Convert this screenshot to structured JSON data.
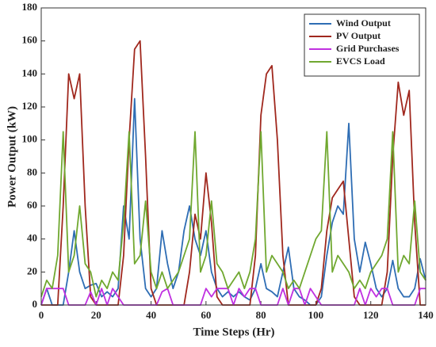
{
  "chart_data": {
    "type": "line",
    "xlabel": "Time Steps (Hr)",
    "ylabel": "Power Output (kW)",
    "x": [
      0,
      2,
      4,
      6,
      8,
      10,
      12,
      14,
      16,
      18,
      20,
      22,
      24,
      26,
      28,
      30,
      32,
      34,
      36,
      38,
      40,
      42,
      44,
      46,
      48,
      50,
      52,
      54,
      56,
      58,
      60,
      62,
      64,
      66,
      68,
      70,
      72,
      74,
      76,
      78,
      80,
      82,
      84,
      86,
      88,
      90,
      92,
      94,
      96,
      98,
      100,
      102,
      104,
      106,
      108,
      110,
      112,
      114,
      116,
      118,
      120,
      122,
      124,
      126,
      128,
      130,
      132,
      134,
      136,
      138,
      140
    ],
    "series": [
      {
        "name": "Wind Output",
        "color": "#2e6db4",
        "values": [
          0,
          10,
          0,
          0,
          0,
          20,
          45,
          20,
          10,
          12,
          13,
          5,
          8,
          5,
          10,
          60,
          40,
          125,
          40,
          10,
          5,
          10,
          45,
          25,
          10,
          20,
          45,
          60,
          40,
          30,
          45,
          20,
          10,
          5,
          8,
          5,
          8,
          5,
          3,
          10,
          25,
          10,
          8,
          5,
          20,
          35,
          10,
          5,
          3,
          0,
          0,
          5,
          30,
          50,
          60,
          55,
          110,
          40,
          20,
          38,
          25,
          10,
          5,
          10,
          27,
          10,
          5,
          5,
          10,
          28,
          15
        ]
      },
      {
        "name": "PV Output",
        "color": "#a0281e",
        "values": [
          0,
          0,
          0,
          0,
          60,
          140,
          125,
          140,
          60,
          5,
          0,
          0,
          0,
          0,
          0,
          30,
          100,
          155,
          160,
          90,
          10,
          0,
          0,
          0,
          0,
          0,
          0,
          20,
          55,
          40,
          80,
          50,
          5,
          0,
          0,
          0,
          0,
          0,
          0,
          30,
          115,
          140,
          145,
          100,
          30,
          0,
          0,
          0,
          0,
          0,
          0,
          10,
          45,
          65,
          70,
          75,
          40,
          5,
          0,
          0,
          0,
          0,
          0,
          20,
          90,
          135,
          115,
          130,
          50,
          0,
          0
        ]
      },
      {
        "name": "Grid Purchases",
        "color": "#c030e0",
        "values": [
          0,
          10,
          10,
          10,
          10,
          0,
          0,
          0,
          0,
          8,
          0,
          10,
          0,
          10,
          5,
          0,
          0,
          0,
          0,
          0,
          0,
          0,
          8,
          10,
          0,
          0,
          0,
          0,
          0,
          0,
          10,
          5,
          10,
          10,
          10,
          0,
          10,
          5,
          10,
          10,
          0,
          0,
          0,
          0,
          10,
          0,
          10,
          10,
          0,
          10,
          5,
          0,
          0,
          0,
          0,
          0,
          0,
          0,
          10,
          0,
          10,
          5,
          10,
          10,
          0,
          0,
          0,
          0,
          0,
          10,
          10
        ]
      },
      {
        "name": "EVCS Load",
        "color": "#70a830",
        "values": [
          5,
          15,
          10,
          30,
          105,
          20,
          30,
          60,
          25,
          20,
          5,
          15,
          10,
          20,
          15,
          50,
          105,
          25,
          30,
          63,
          20,
          10,
          20,
          10,
          15,
          20,
          30,
          40,
          105,
          20,
          30,
          63,
          25,
          20,
          10,
          15,
          20,
          10,
          20,
          40,
          105,
          20,
          30,
          25,
          20,
          10,
          15,
          10,
          20,
          30,
          40,
          45,
          105,
          20,
          30,
          25,
          20,
          10,
          15,
          10,
          20,
          25,
          30,
          40,
          105,
          20,
          30,
          25,
          63,
          20,
          15
        ]
      }
    ],
    "xlim": [
      0,
      140
    ],
    "xticks": [
      0,
      20,
      40,
      60,
      80,
      100,
      120,
      140
    ],
    "ylim": [
      0,
      180
    ],
    "yticks": [
      0,
      20,
      40,
      60,
      80,
      100,
      120,
      140,
      160,
      180
    ],
    "legend": "upper right"
  }
}
